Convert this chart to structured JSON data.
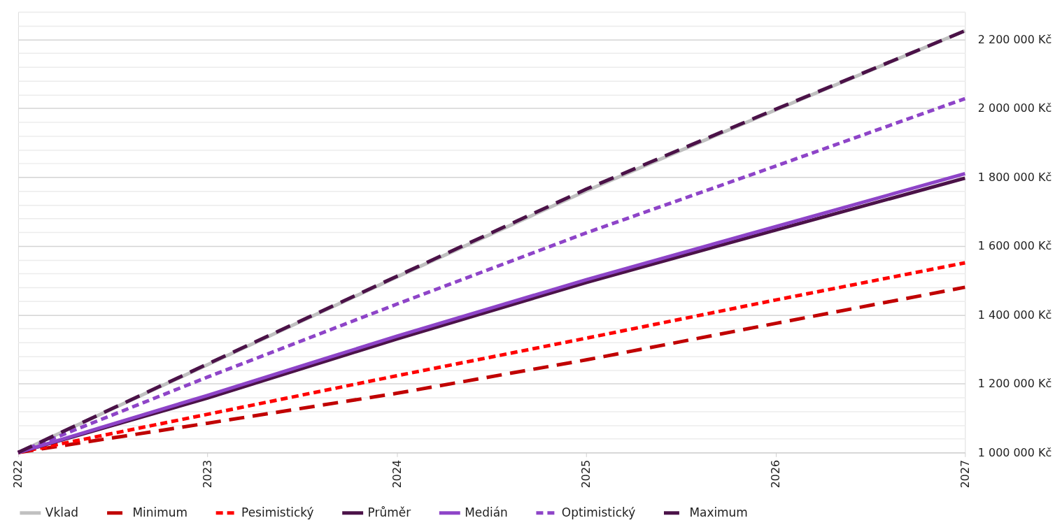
{
  "chart_data": {
    "type": "line",
    "x": [
      2022,
      2023,
      2024,
      2025,
      2026,
      2027
    ],
    "xlim": [
      2022,
      2027
    ],
    "xticks": [
      2022,
      2023,
      2024,
      2025,
      2026,
      2027
    ],
    "ylim": [
      1000000,
      2280000
    ],
    "yticks": [
      {
        "value": 1000000,
        "label": "1 000 000 Kč"
      },
      {
        "value": 1040000,
        "label": null
      },
      {
        "value": 1080000,
        "label": null
      },
      {
        "value": 1120000,
        "label": null
      },
      {
        "value": 1160000,
        "label": null
      },
      {
        "value": 1200000,
        "label": "1 200 000 Kč"
      },
      {
        "value": 1240000,
        "label": null
      },
      {
        "value": 1280000,
        "label": null
      },
      {
        "value": 1320000,
        "label": null
      },
      {
        "value": 1360000,
        "label": null
      },
      {
        "value": 1400000,
        "label": "1 400 000 Kč"
      },
      {
        "value": 1440000,
        "label": null
      },
      {
        "value": 1480000,
        "label": null
      },
      {
        "value": 1520000,
        "label": null
      },
      {
        "value": 1560000,
        "label": null
      },
      {
        "value": 1600000,
        "label": "1 600 000 Kč"
      },
      {
        "value": 1640000,
        "label": null
      },
      {
        "value": 1680000,
        "label": null
      },
      {
        "value": 1720000,
        "label": null
      },
      {
        "value": 1760000,
        "label": null
      },
      {
        "value": 1800000,
        "label": "1 800 000 Kč"
      },
      {
        "value": 1840000,
        "label": null
      },
      {
        "value": 1880000,
        "label": null
      },
      {
        "value": 1920000,
        "label": null
      },
      {
        "value": 1960000,
        "label": null
      },
      {
        "value": 2000000,
        "label": "2 000 000 Kč"
      },
      {
        "value": 2040000,
        "label": null
      },
      {
        "value": 2080000,
        "label": null
      },
      {
        "value": 2120000,
        "label": null
      },
      {
        "value": 2160000,
        "label": null
      },
      {
        "value": 2200000,
        "label": "2 200 000 Kč"
      },
      {
        "value": 2240000,
        "label": null
      },
      {
        "value": 2280000,
        "label": null
      }
    ],
    "grid": "y",
    "legend": "bottom",
    "marker": "none",
    "series": [
      {
        "name": "Vklad",
        "color": "#c0c0c0",
        "line_style": "solid",
        "values": [
          1000000,
          1255000,
          1510000,
          1760000,
          1995000,
          2225000
        ]
      },
      {
        "name": "Minimum",
        "color": "#c00000",
        "line_style": "dashed",
        "values": [
          1000000,
          1085000,
          1172000,
          1269000,
          1375000,
          1480000
        ]
      },
      {
        "name": "Pesimistický",
        "color": "#ff0000",
        "line_style": "dotted",
        "values": [
          1000000,
          1111000,
          1223000,
          1332000,
          1443000,
          1551000
        ]
      },
      {
        "name": "Průměr",
        "color": "#4b1248",
        "line_style": "solid",
        "values": [
          1000000,
          1158000,
          1330000,
          1494000,
          1646000,
          1797000
        ]
      },
      {
        "name": "Medián",
        "color": "#8e44c8",
        "line_style": "solid",
        "values": [
          1000000,
          1166000,
          1338000,
          1502000,
          1656000,
          1810000
        ]
      },
      {
        "name": "Optimistický",
        "color": "#8e44c8",
        "line_style": "dotted",
        "values": [
          1000000,
          1219000,
          1431000,
          1638000,
          1832000,
          2028000
        ]
      },
      {
        "name": "Maximum",
        "color": "#4b1248",
        "line_style": "dashed",
        "values": [
          1000000,
          1257000,
          1512000,
          1765000,
          1997000,
          2225000
        ]
      }
    ]
  }
}
